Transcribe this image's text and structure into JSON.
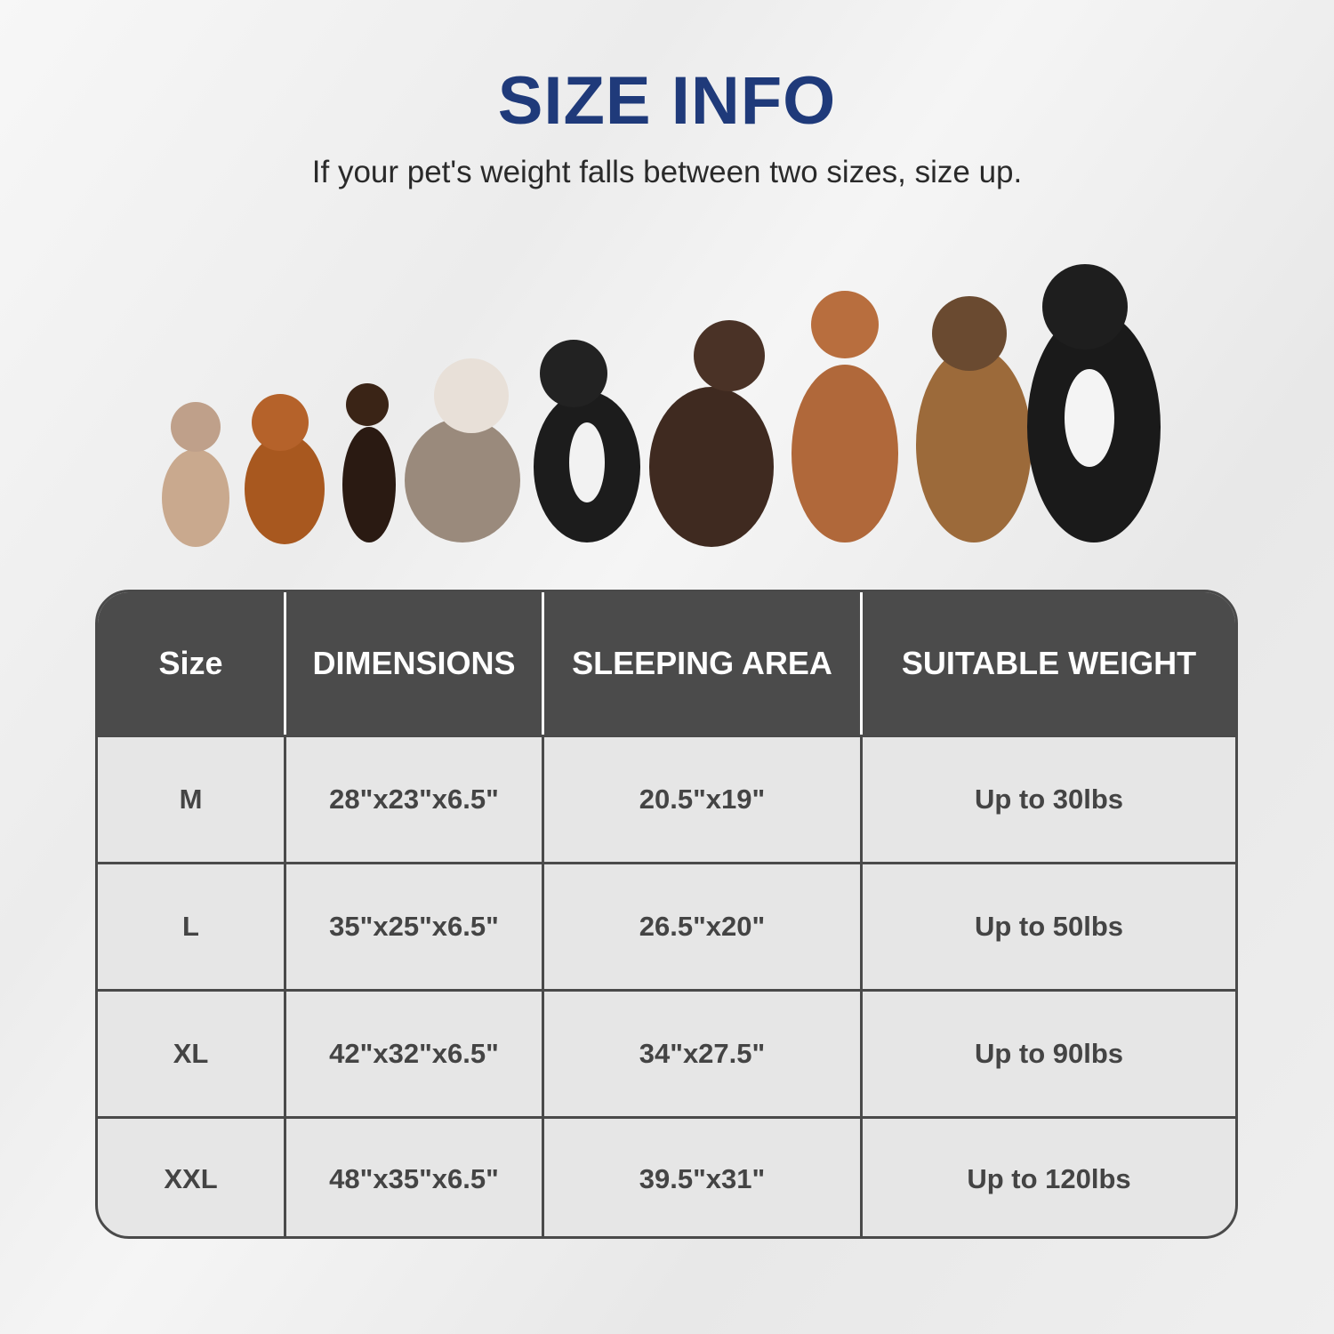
{
  "header": {
    "title": "SIZE INFO",
    "subtitle": "If your pet's weight falls between two sizes, size up."
  },
  "colors": {
    "title": "#1f3a7a",
    "table_header": "#4b4b4b",
    "table_body": "#e6e6e6"
  },
  "image": {
    "description_icon": "dogs-lineup-photo"
  },
  "table": {
    "headers": [
      "Size",
      "DIMENSIONS",
      "SLEEPING AREA",
      "SUITABLE WEIGHT"
    ],
    "rows": [
      [
        "M",
        "28\"x23\"x6.5\"",
        "20.5\"x19\"",
        "Up to 30lbs"
      ],
      [
        "L",
        "35\"x25\"x6.5\"",
        "26.5\"x20\"",
        "Up to 50lbs"
      ],
      [
        "XL",
        "42\"x32\"x6.5\"",
        "34\"x27.5\"",
        "Up to 90lbs"
      ],
      [
        "XXL",
        "48\"x35\"x6.5\"",
        "39.5\"x31\"",
        "Up to 120lbs"
      ]
    ]
  }
}
